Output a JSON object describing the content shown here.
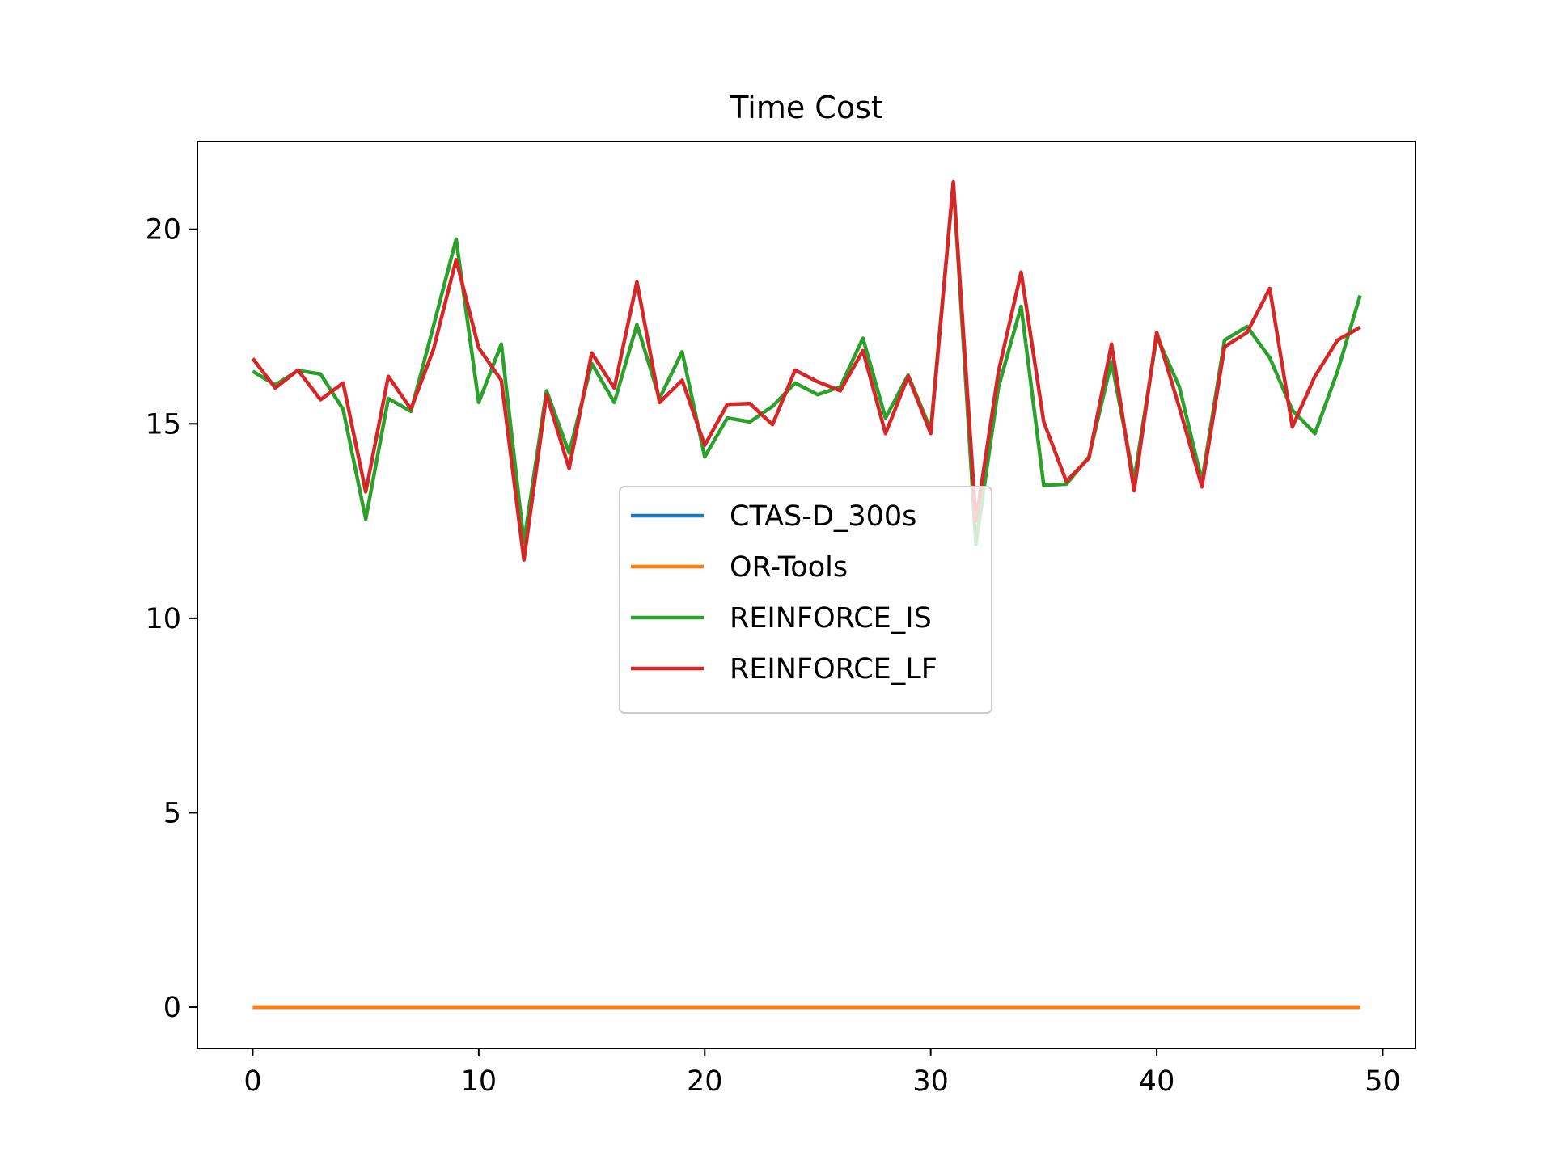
{
  "chart_data": {
    "type": "line",
    "title": "Time Cost",
    "xlabel": "",
    "ylabel": "",
    "xlim": [
      -2.45,
      51.45
    ],
    "ylim": [
      -1.06,
      22.26
    ],
    "x_ticks": [
      0,
      10,
      20,
      30,
      40,
      50
    ],
    "y_ticks": [
      0,
      5,
      10,
      15,
      20
    ],
    "grid": false,
    "legend_position": "center",
    "x": [
      0,
      1,
      2,
      3,
      4,
      5,
      6,
      7,
      8,
      9,
      10,
      11,
      12,
      13,
      14,
      15,
      16,
      17,
      18,
      19,
      20,
      21,
      22,
      23,
      24,
      25,
      26,
      27,
      28,
      29,
      30,
      31,
      32,
      33,
      34,
      35,
      36,
      37,
      38,
      39,
      40,
      41,
      42,
      43,
      44,
      45,
      46,
      47,
      48,
      49
    ],
    "series": [
      {
        "name": "CTAS-D_300s",
        "color": "#1f77b4",
        "values": [
          0,
          0,
          0,
          0,
          0,
          0,
          0,
          0,
          0,
          0,
          0,
          0,
          0,
          0,
          0,
          0,
          0,
          0,
          0,
          0,
          0,
          0,
          0,
          0,
          0,
          0,
          0,
          0,
          0,
          0,
          0,
          0,
          0,
          0,
          0,
          0,
          0,
          0,
          0,
          0,
          0,
          0,
          0,
          0,
          0,
          0,
          0,
          0,
          0,
          0
        ]
      },
      {
        "name": "OR-Tools",
        "color": "#ff7f0e",
        "values": [
          0,
          0,
          0,
          0,
          0,
          0,
          0,
          0,
          0,
          0,
          0,
          0,
          0,
          0,
          0,
          0,
          0,
          0,
          0,
          0,
          0,
          0,
          0,
          0,
          0,
          0,
          0,
          0,
          0,
          0,
          0,
          0,
          0,
          0,
          0,
          0,
          0,
          0,
          0,
          0,
          0,
          0,
          0,
          0,
          0,
          0,
          0,
          0,
          0,
          0
        ]
      },
      {
        "name": "REINFORCE_IS",
        "color": "#2ca02c",
        "values": [
          16.35,
          16.0,
          16.37,
          16.28,
          15.37,
          12.55,
          15.65,
          15.32,
          17.52,
          19.75,
          15.55,
          17.05,
          11.95,
          15.85,
          14.25,
          16.55,
          15.55,
          17.55,
          15.65,
          16.85,
          14.15,
          15.15,
          15.05,
          15.45,
          16.05,
          15.75,
          15.95,
          17.2,
          15.15,
          16.25,
          14.85,
          21.2,
          11.9,
          15.95,
          18.02,
          13.42,
          13.45,
          14.15,
          16.6,
          13.55,
          17.25,
          15.95,
          13.52,
          17.15,
          17.5,
          16.7,
          15.35,
          14.75,
          16.35,
          18.3
        ]
      },
      {
        "name": "REINFORCE_LF",
        "color": "#d62728",
        "values": [
          16.68,
          15.92,
          16.38,
          15.62,
          16.05,
          13.25,
          16.22,
          15.38,
          16.92,
          19.22,
          16.95,
          16.12,
          11.5,
          15.75,
          13.85,
          16.82,
          15.92,
          18.65,
          15.55,
          16.12,
          14.45,
          15.5,
          15.52,
          14.98,
          16.38,
          16.08,
          15.85,
          16.88,
          14.75,
          16.22,
          14.75,
          21.22,
          12.5,
          16.35,
          18.9,
          15.05,
          13.52,
          14.12,
          17.05,
          13.28,
          17.35,
          15.42,
          13.38,
          16.98,
          17.35,
          18.48,
          14.92,
          16.22,
          17.15,
          17.48
        ]
      }
    ]
  }
}
